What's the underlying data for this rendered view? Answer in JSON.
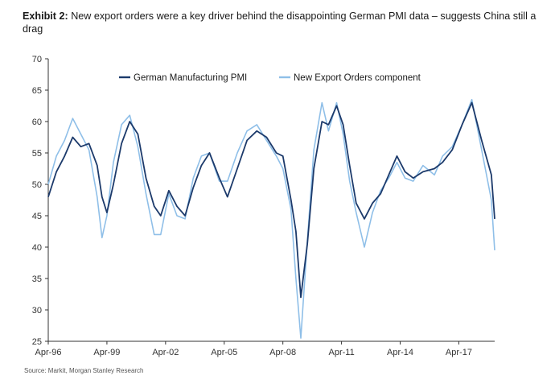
{
  "header": {
    "exhibit_label": "Exhibit 2:",
    "title": "New export orders were a key driver behind the disappointing German PMI data – suggests China still a drag"
  },
  "footer": {
    "source": "Source: Markit, Morgan Stanley Research"
  },
  "colors": {
    "pmi": "#1c3a6b",
    "export": "#8fbfe8",
    "axis": "#333333"
  },
  "chart_data": {
    "type": "line",
    "title": "",
    "xlabel": "",
    "ylabel": "",
    "ylim": [
      25,
      70
    ],
    "yticks": [
      25,
      30,
      35,
      40,
      45,
      50,
      55,
      60,
      65,
      70
    ],
    "xlim": [
      "1996-04",
      "2019-02"
    ],
    "xticks": [
      "Apr-96",
      "Apr-99",
      "Apr-02",
      "Apr-05",
      "Apr-08",
      "Apr-11",
      "Apr-14",
      "Apr-17"
    ],
    "grid": false,
    "legend": "top-center",
    "series": [
      {
        "name": "German Manufacturing PMI",
        "x": [
          "1996-04",
          "1996-09",
          "1997-02",
          "1997-07",
          "1997-12",
          "1998-05",
          "1998-10",
          "1999-01",
          "1999-04",
          "1999-08",
          "2000-01",
          "2000-06",
          "2000-11",
          "2001-04",
          "2001-09",
          "2002-01",
          "2002-06",
          "2002-11",
          "2003-04",
          "2003-09",
          "2004-02",
          "2004-07",
          "2005-01",
          "2005-06",
          "2005-12",
          "2006-06",
          "2006-12",
          "2007-06",
          "2007-12",
          "2008-04",
          "2008-09",
          "2008-12",
          "2009-03",
          "2009-07",
          "2009-11",
          "2010-04",
          "2010-08",
          "2011-01",
          "2011-05",
          "2011-09",
          "2012-01",
          "2012-06",
          "2012-11",
          "2013-04",
          "2013-09",
          "2014-02",
          "2014-07",
          "2014-12",
          "2015-06",
          "2016-01",
          "2016-06",
          "2016-12",
          "2017-06",
          "2017-12",
          "2018-06",
          "2018-12",
          "2019-02"
        ],
        "values": [
          48.0,
          52.0,
          54.5,
          57.5,
          56.0,
          56.5,
          53.0,
          48.0,
          45.5,
          50.0,
          56.5,
          60.0,
          58.0,
          51.0,
          46.5,
          45.0,
          49.0,
          46.5,
          45.0,
          49.5,
          53.0,
          55.0,
          51.0,
          48.0,
          52.5,
          57.0,
          58.5,
          57.5,
          55.0,
          54.5,
          47.5,
          42.5,
          32.0,
          40.5,
          52.5,
          60.0,
          59.5,
          62.5,
          59.5,
          53.0,
          47.0,
          44.5,
          47.0,
          48.5,
          51.5,
          54.5,
          52.0,
          51.0,
          52.0,
          52.5,
          53.5,
          55.5,
          59.5,
          63.0,
          57.0,
          51.5,
          44.5
        ]
      },
      {
        "name": "New Export Orders component",
        "x": [
          "1996-04",
          "1996-09",
          "1997-02",
          "1997-07",
          "1997-12",
          "1998-05",
          "1998-10",
          "1999-01",
          "1999-04",
          "1999-08",
          "2000-01",
          "2000-06",
          "2000-11",
          "2001-04",
          "2001-09",
          "2002-01",
          "2002-06",
          "2002-11",
          "2003-04",
          "2003-09",
          "2004-02",
          "2004-07",
          "2005-01",
          "2005-06",
          "2005-12",
          "2006-06",
          "2006-12",
          "2007-06",
          "2007-12",
          "2008-04",
          "2008-09",
          "2008-12",
          "2009-03",
          "2009-07",
          "2009-11",
          "2010-04",
          "2010-08",
          "2011-01",
          "2011-05",
          "2011-09",
          "2012-01",
          "2012-06",
          "2012-11",
          "2013-04",
          "2013-09",
          "2014-02",
          "2014-07",
          "2014-12",
          "2015-06",
          "2016-01",
          "2016-06",
          "2016-12",
          "2017-06",
          "2017-12",
          "2018-06",
          "2018-12",
          "2019-02"
        ],
        "values": [
          50.0,
          54.5,
          57.0,
          60.5,
          58.0,
          55.5,
          48.0,
          41.5,
          45.0,
          53.5,
          59.5,
          61.0,
          56.0,
          48.5,
          42.0,
          42.0,
          48.5,
          45.0,
          44.5,
          51.0,
          54.5,
          55.0,
          50.5,
          50.5,
          55.0,
          58.5,
          59.5,
          57.0,
          54.5,
          52.5,
          46.0,
          35.0,
          25.5,
          41.0,
          55.5,
          63.0,
          58.5,
          63.0,
          58.0,
          50.5,
          45.5,
          40.0,
          45.5,
          49.0,
          51.0,
          53.5,
          51.0,
          50.5,
          53.0,
          51.5,
          54.5,
          56.0,
          59.5,
          63.5,
          55.5,
          47.5,
          39.5
        ]
      }
    ]
  }
}
